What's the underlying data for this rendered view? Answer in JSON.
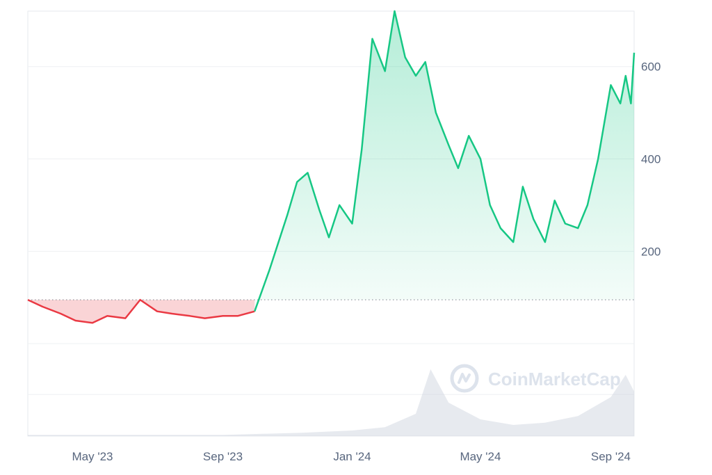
{
  "colors": {
    "up_line": "#16c784",
    "down_line": "#ea3943",
    "grid": "#eef0f3",
    "frame": "#e6e9ee",
    "baseline_dots": "#8a8f98",
    "volume": "#cfd6e0"
  },
  "watermark": {
    "icon": "coinmarketcap-logo-icon",
    "text": "CoinMarketCap"
  },
  "chart_data": {
    "type": "area",
    "baseline": 95,
    "xlim": [
      "2023-03-01",
      "2024-09-23"
    ],
    "ylim": [
      -200,
      720
    ],
    "y_ticks": [
      200,
      400,
      600
    ],
    "x_ticks": [
      {
        "date": "2023-05-01",
        "label": "May '23"
      },
      {
        "date": "2023-09-01",
        "label": "Sep '23"
      },
      {
        "date": "2024-01-01",
        "label": "Jan '24"
      },
      {
        "date": "2024-05-01",
        "label": "May '24"
      },
      {
        "date": "2024-09-01",
        "label": "Sep '24"
      }
    ],
    "grid": true,
    "series": [
      {
        "x": [
          "2023-03-01",
          "2023-03-15",
          "2023-04-01",
          "2023-04-15",
          "2023-05-01",
          "2023-05-15",
          "2023-06-01",
          "2023-06-15",
          "2023-07-01",
          "2023-07-15",
          "2023-08-01",
          "2023-08-15",
          "2023-09-01",
          "2023-09-15",
          "2023-10-01",
          "2023-10-15",
          "2023-11-01",
          "2023-11-10",
          "2023-11-20",
          "2023-12-01",
          "2023-12-10",
          "2023-12-20",
          "2024-01-01",
          "2024-01-10",
          "2024-01-20",
          "2024-02-01",
          "2024-02-10",
          "2024-02-20",
          "2024-03-01",
          "2024-03-10",
          "2024-03-20",
          "2024-04-01",
          "2024-04-10",
          "2024-04-20",
          "2024-05-01",
          "2024-05-10",
          "2024-05-20",
          "2024-06-01",
          "2024-06-10",
          "2024-06-20",
          "2024-07-01",
          "2024-07-10",
          "2024-07-20",
          "2024-08-01",
          "2024-08-10",
          "2024-08-20",
          "2024-09-01",
          "2024-09-10",
          "2024-09-15",
          "2024-09-20",
          "2024-09-23"
        ],
        "y": [
          95,
          80,
          65,
          50,
          45,
          60,
          55,
          95,
          70,
          65,
          60,
          55,
          60,
          60,
          70,
          160,
          280,
          350,
          370,
          290,
          230,
          300,
          260,
          420,
          660,
          590,
          720,
          620,
          580,
          610,
          500,
          430,
          380,
          450,
          400,
          300,
          250,
          220,
          340,
          270,
          220,
          310,
          260,
          250,
          300,
          400,
          560,
          520,
          580,
          520,
          630
        ]
      }
    ],
    "volume": {
      "x": [
        "2023-03-01",
        "2023-06-01",
        "2023-09-01",
        "2023-11-15",
        "2024-01-01",
        "2024-02-01",
        "2024-03-01",
        "2024-03-15",
        "2024-04-01",
        "2024-05-01",
        "2024-06-01",
        "2024-07-01",
        "2024-08-01",
        "2024-09-01",
        "2024-09-15",
        "2024-09-23"
      ],
      "y": [
        1,
        1,
        1,
        3,
        5,
        8,
        20,
        60,
        30,
        15,
        10,
        12,
        18,
        35,
        55,
        40
      ]
    }
  }
}
